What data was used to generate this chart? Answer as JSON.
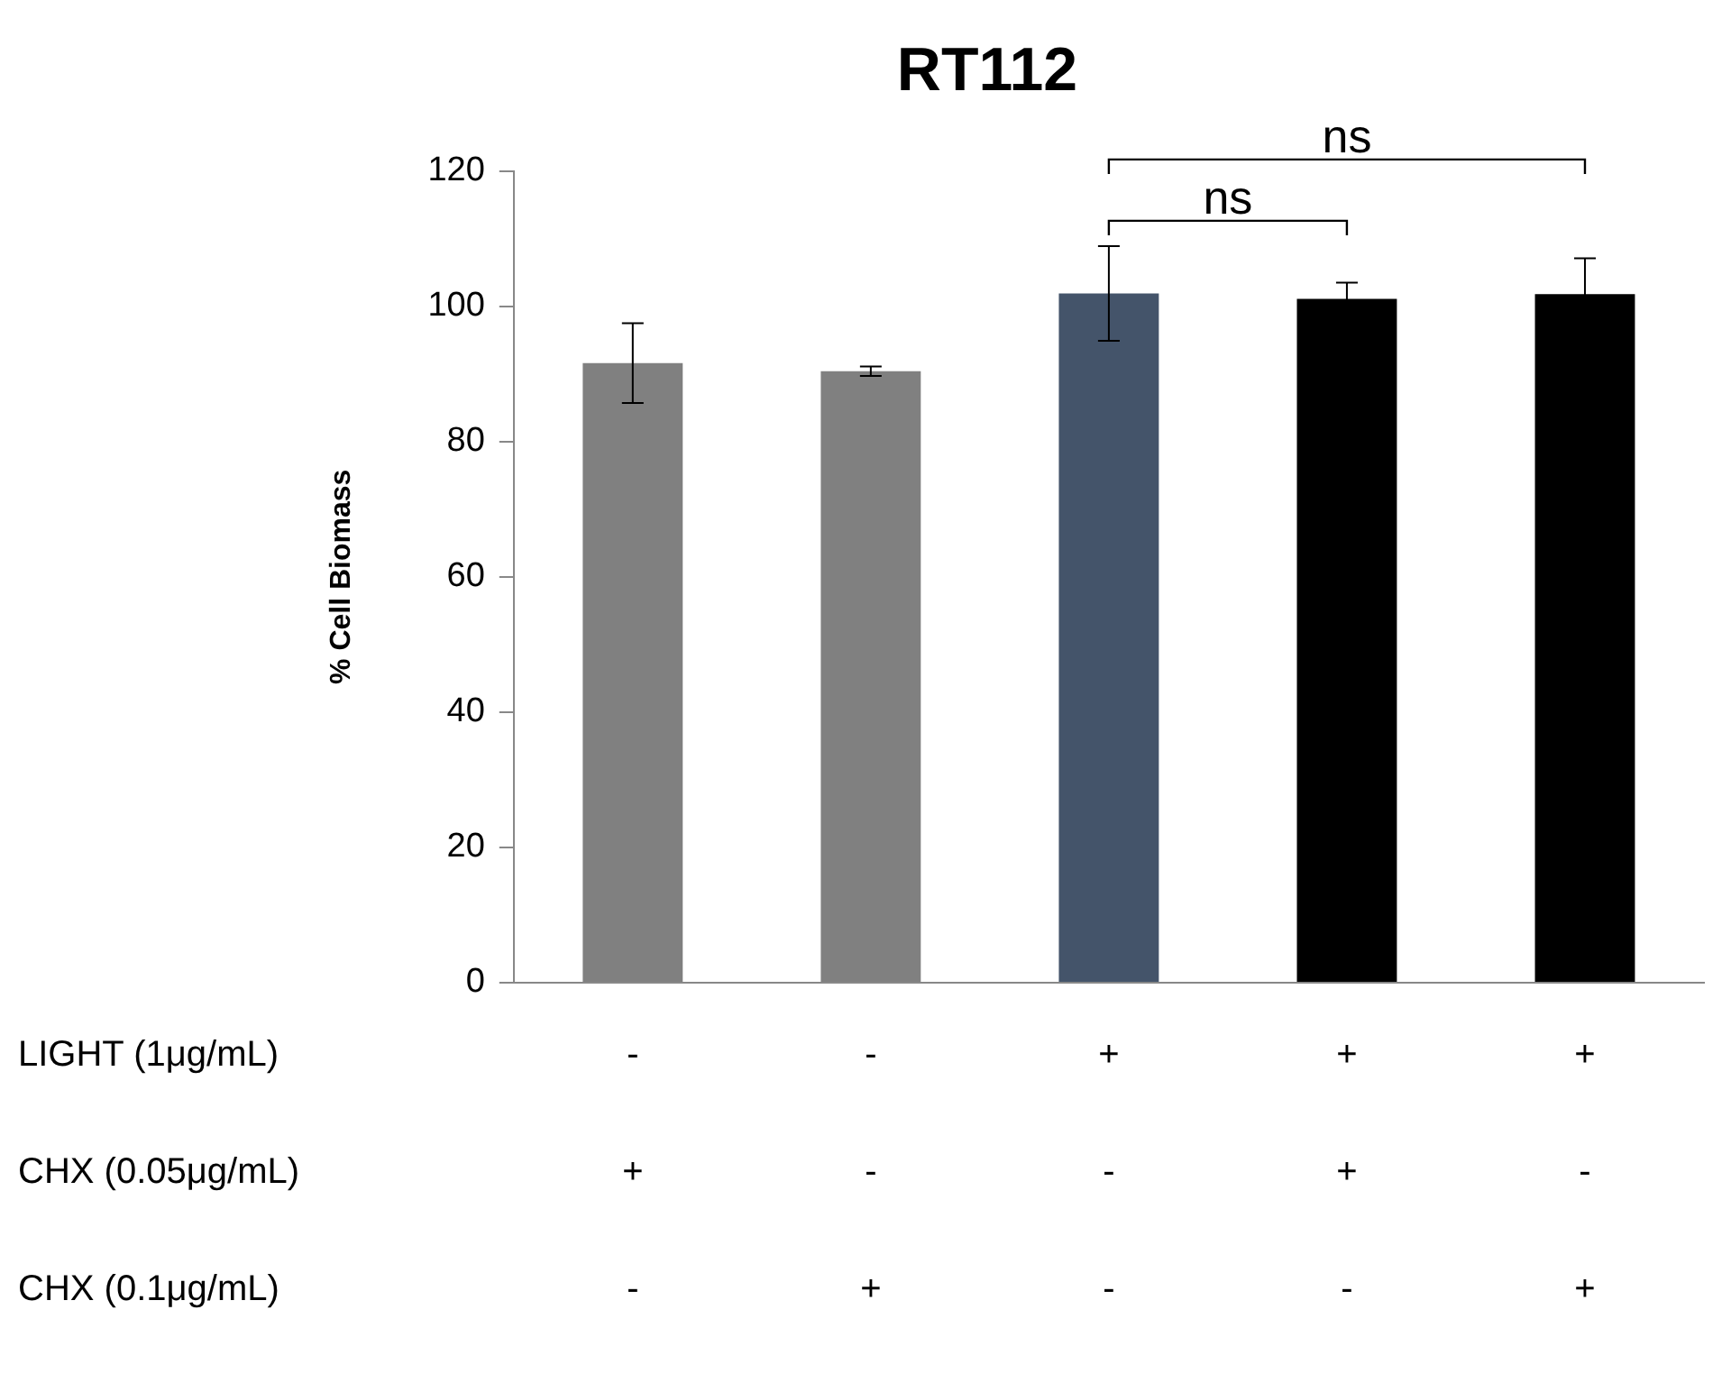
{
  "chart_data": {
    "type": "bar",
    "title": "RT112",
    "ylabel": "% Cell Biomass",
    "categories": [
      "-\n+\n-",
      "-\n-\n+",
      "+\n-\n-",
      "+\n+\n-",
      "+\n-\n+"
    ],
    "values": [
      91.6,
      90.4,
      101.9,
      101.1,
      101.8
    ],
    "errors": [
      5.9,
      0.7,
      7,
      2.4,
      5.3
    ],
    "colors": [
      "#808080",
      "#808080",
      "#44546a",
      "#000000",
      "#000000"
    ],
    "ylim": [
      0,
      120
    ],
    "yticks": [
      0,
      20,
      40,
      60,
      80,
      100,
      120
    ],
    "grid": false,
    "legend": false,
    "annotations": [
      "LIGHT (1μg/mL)",
      "CHX (0.05μg/mL)",
      "CHX (0.1μg/mL)",
      "ns",
      "ns"
    ]
  }
}
